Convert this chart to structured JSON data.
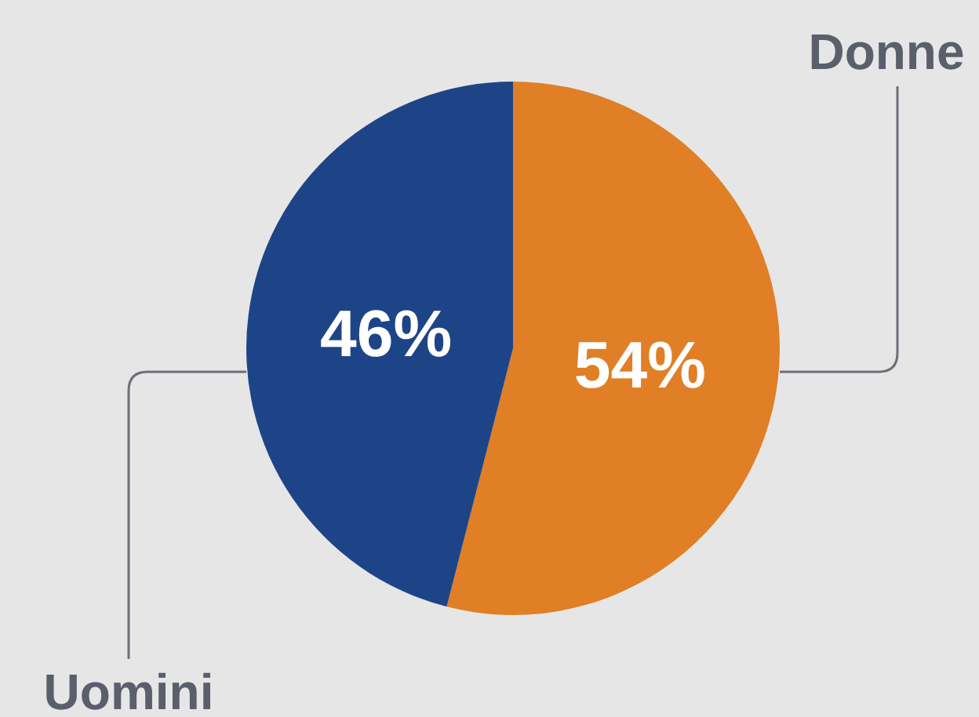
{
  "chart_data": {
    "type": "pie",
    "categories": [
      "Donne",
      "Uomini"
    ],
    "values": [
      54,
      46
    ],
    "colors": [
      "#e07f25",
      "#1e4488"
    ],
    "value_labels": [
      "54%",
      "46%"
    ]
  }
}
